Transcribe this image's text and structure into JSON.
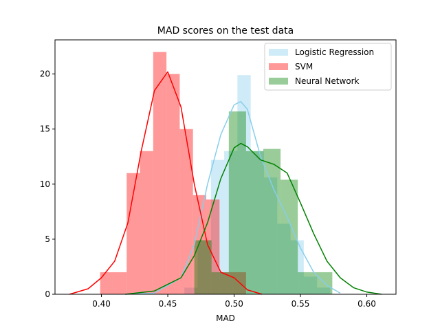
{
  "chart_data": {
    "type": "histogram",
    "title": "MAD scores on the test data",
    "xlabel": "MAD",
    "ylabel": "",
    "xlim": [
      0.365,
      0.622
    ],
    "ylim": [
      0,
      23.1
    ],
    "xticks": [
      0.4,
      0.45,
      0.5,
      0.55,
      0.6
    ],
    "xtick_labels": [
      "0.40",
      "0.45",
      "0.50",
      "0.55",
      "0.60"
    ],
    "yticks": [
      0,
      5,
      10,
      15,
      20
    ],
    "ytick_labels": [
      "0",
      "5",
      "10",
      "15",
      "20"
    ],
    "legend_position": "top-right",
    "grid": false,
    "series": [
      {
        "name": "Logistic Regression",
        "color": "#87ceeb",
        "bar_alpha": 0.4,
        "bins": [
          {
            "x0": 0.4625,
            "x1": 0.4725,
            "y": 0.6
          },
          {
            "x0": 0.4725,
            "x1": 0.4825,
            "y": 4.9
          },
          {
            "x0": 0.4825,
            "x1": 0.4925,
            "y": 12.2
          },
          {
            "x0": 0.4925,
            "x1": 0.5025,
            "y": 13.0
          },
          {
            "x0": 0.5025,
            "x1": 0.5125,
            "y": 19.9
          },
          {
            "x0": 0.5125,
            "x1": 0.5225,
            "y": 13.0
          },
          {
            "x0": 0.5225,
            "x1": 0.5325,
            "y": 10.6
          },
          {
            "x0": 0.5325,
            "x1": 0.5425,
            "y": 6.4
          },
          {
            "x0": 0.5425,
            "x1": 0.5525,
            "y": 4.9
          },
          {
            "x0": 0.5525,
            "x1": 0.5625,
            "y": 1.6
          },
          {
            "x0": 0.5625,
            "x1": 0.5725,
            "y": 0.6
          }
        ],
        "kde": {
          "x": [
            0.418,
            0.44,
            0.46,
            0.47,
            0.48,
            0.49,
            0.5,
            0.505,
            0.51,
            0.52,
            0.53,
            0.54,
            0.55,
            0.56,
            0.57,
            0.58
          ],
          "y": [
            0,
            0.1,
            1.5,
            4.5,
            10.0,
            14.5,
            17.2,
            17.5,
            16.8,
            12.5,
            9.5,
            7.0,
            4.2,
            2.0,
            0.8,
            0.1
          ]
        }
      },
      {
        "name": "SVM",
        "color": "#ff0000",
        "bar_alpha": 0.4,
        "bins": [
          {
            "x0": 0.399,
            "x1": 0.409,
            "y": 2.0
          },
          {
            "x0": 0.409,
            "x1": 0.419,
            "y": 2.0
          },
          {
            "x0": 0.419,
            "x1": 0.429,
            "y": 11.0
          },
          {
            "x0": 0.429,
            "x1": 0.439,
            "y": 13.0
          },
          {
            "x0": 0.439,
            "x1": 0.449,
            "y": 22.0
          },
          {
            "x0": 0.449,
            "x1": 0.459,
            "y": 20.0
          },
          {
            "x0": 0.459,
            "x1": 0.469,
            "y": 15.0
          },
          {
            "x0": 0.469,
            "x1": 0.479,
            "y": 9.0
          },
          {
            "x0": 0.479,
            "x1": 0.489,
            "y": 8.6
          },
          {
            "x0": 0.489,
            "x1": 0.499,
            "y": 2.0
          },
          {
            "x0": 0.499,
            "x1": 0.509,
            "y": 2.0
          }
        ],
        "kde": {
          "x": [
            0.376,
            0.39,
            0.4,
            0.41,
            0.42,
            0.43,
            0.44,
            0.45,
            0.46,
            0.47,
            0.48,
            0.49,
            0.5,
            0.51,
            0.521
          ],
          "y": [
            0,
            0.5,
            1.5,
            3.0,
            6.5,
            13.0,
            18.5,
            20.2,
            17.0,
            10.0,
            4.5,
            2.0,
            1.5,
            0.4,
            0.0
          ]
        }
      },
      {
        "name": "Neural Network",
        "color": "#008000",
        "bar_alpha": 0.4,
        "bins": [
          {
            "x0": 0.47,
            "x1": 0.483,
            "y": 4.9
          },
          {
            "x0": 0.483,
            "x1": 0.496,
            "y": 2.0
          },
          {
            "x0": 0.496,
            "x1": 0.509,
            "y": 16.6
          },
          {
            "x0": 0.509,
            "x1": 0.522,
            "y": 13.0
          },
          {
            "x0": 0.522,
            "x1": 0.535,
            "y": 13.2
          },
          {
            "x0": 0.535,
            "x1": 0.548,
            "y": 10.4
          },
          {
            "x0": 0.548,
            "x1": 0.561,
            "y": 2.0
          },
          {
            "x0": 0.561,
            "x1": 0.574,
            "y": 2.0
          }
        ],
        "kde": {
          "x": [
            0.418,
            0.44,
            0.46,
            0.47,
            0.48,
            0.49,
            0.5,
            0.505,
            0.51,
            0.52,
            0.53,
            0.54,
            0.55,
            0.56,
            0.57,
            0.58,
            0.59,
            0.6,
            0.611
          ],
          "y": [
            0,
            0.3,
            1.5,
            3.5,
            6.5,
            10.5,
            13.3,
            13.7,
            13.4,
            12.2,
            11.8,
            11.0,
            8.3,
            5.5,
            3.0,
            1.5,
            0.6,
            0.2,
            0.0
          ]
        }
      }
    ]
  }
}
